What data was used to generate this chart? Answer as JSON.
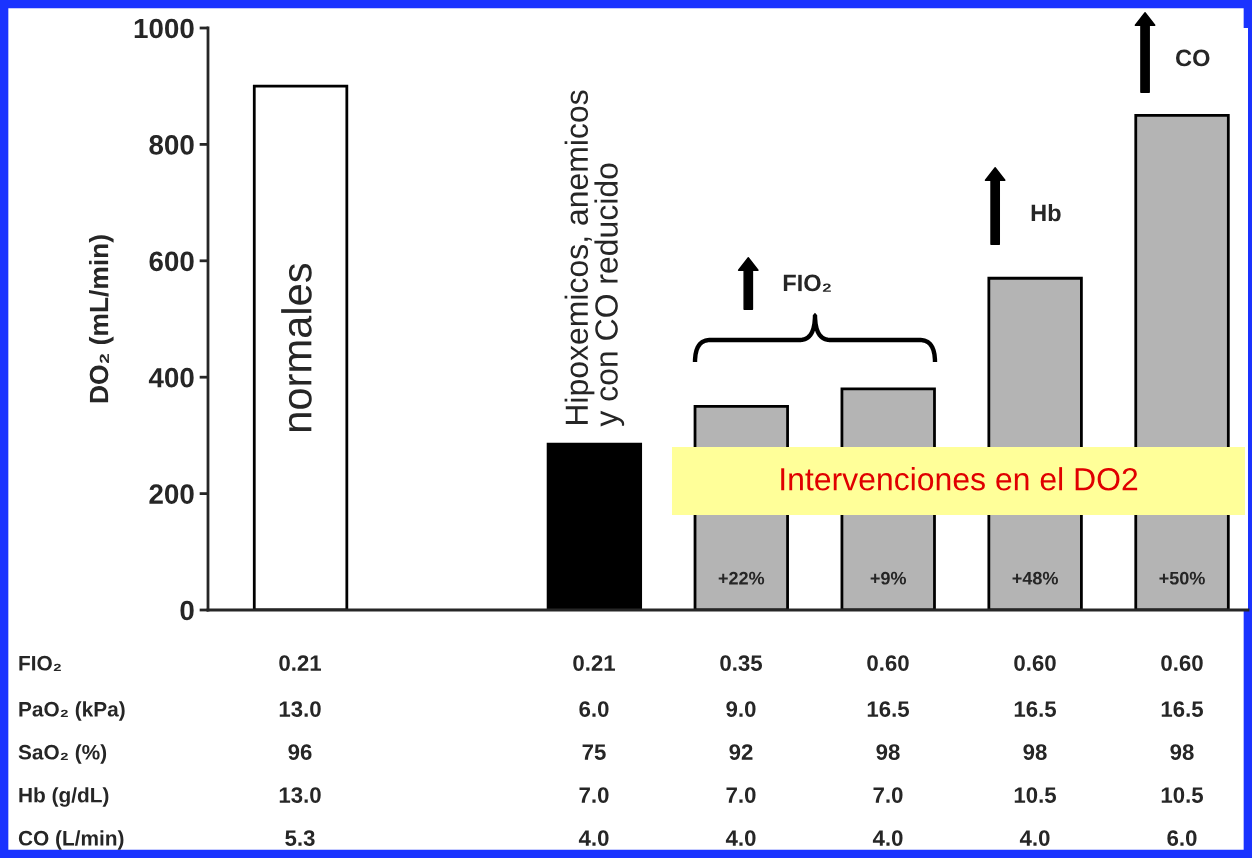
{
  "chart_data": {
    "type": "bar",
    "ylabel": "DO₂ (mL/min)",
    "categories": [
      "normales",
      null,
      "Hipoxemicos, anemicos\ny con CO reducido",
      null,
      null,
      null,
      null
    ],
    "values": [
      900,
      null,
      285,
      350,
      380,
      570,
      850
    ],
    "colors": [
      "#ffffff",
      "#ffffff",
      "#000000",
      "#b4b4b4",
      "#b4b4b4",
      "#b4b4b4",
      "#b4b4b4"
    ],
    "ylim": [
      0,
      1000
    ],
    "yticks": [
      0,
      200,
      400,
      600,
      800,
      1000
    ],
    "annotations": [
      "FIO₂",
      "Hb",
      "CO",
      "Intervenciones en el DO2",
      "+22%",
      "+9%",
      "+48%",
      "+50%",
      "FIO₂",
      "0.21",
      "0.21",
      "0.35",
      "0.60",
      "0.60",
      "0.60",
      "PaO₂ (kPa)",
      "13.0",
      "6.0",
      "9.0",
      "16.5",
      "16.5",
      "16.5",
      "SaO₂ (%)",
      "96",
      "75",
      "92",
      "98",
      "98",
      "98",
      "Hb (g/dL)",
      "13.0",
      "7.0",
      "7.0",
      "7.0",
      "10.5",
      "10.5",
      "CO (L/min)",
      "5.3",
      "4.0",
      "4.0",
      "4.0",
      "4.0",
      "6.0"
    ]
  }
}
